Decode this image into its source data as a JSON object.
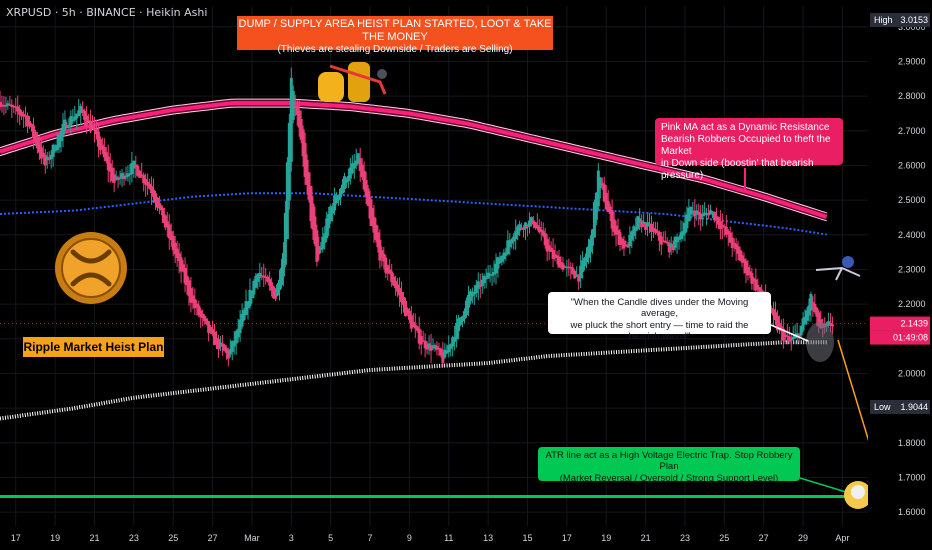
{
  "header": {
    "symbol_line": "XRPUSD · 5h · BINANCE · Heikin Ashi"
  },
  "annotations": {
    "top_line1": "DUMP / SUPPLY AREA HEIST PLAN STARTED, LOOT & TAKE THE MONEY",
    "top_line2": "(Thieves are stealing Downside / Traders are Selling)",
    "pink_line1": "Pink MA act as a Dynamic Resistance",
    "pink_line2": "Bearish Robbers Occupied to theft the Market",
    "pink_line3": "in Down side (boostin' that bearish pressure)",
    "white_line1": "\"When the Candle dives under the Moving average,",
    "white_line2": "we pluck the short entry — time to raid the bearish wave!\"",
    "green_line1": "ATR line act as a High Voltage Electric Trap. Stop Robbery Plan",
    "green_line2": "(Market Reversal / Oversold / Strong Support Level)",
    "heist_label": "Ripple Market Heist Plan"
  },
  "price_tags": {
    "high_label": "High",
    "high_value": "3.0153",
    "current_value": "2.1439",
    "countdown": "01:49:08",
    "low_label": "Low",
    "low_value": "1.9044"
  },
  "colors": {
    "bull": "#26a69a",
    "bear": "#ec407a",
    "pink_ma": "#ff1f7a",
    "blue_ma": "#2962ff",
    "white_ma": "#ffffff",
    "atr_line": "#00c853",
    "arrow": "#f7a21b"
  },
  "chart_data": {
    "type": "candlestick",
    "title": "XRPUSD · 5h · BINANCE · Heikin Ashi",
    "y_ticks": [
      1.6,
      1.7,
      1.8,
      1.9,
      2.0,
      2.1,
      2.2,
      2.3,
      2.4,
      2.5,
      2.6,
      2.7,
      2.8,
      2.9,
      3.0
    ],
    "ylim": [
      1.56,
      3.06
    ],
    "x_ticks": [
      "17",
      "19",
      "21",
      "23",
      "25",
      "27",
      "Mar",
      "3",
      "5",
      "7",
      "9",
      "11",
      "13",
      "15",
      "17",
      "19",
      "21",
      "23",
      "25",
      "27",
      "29",
      "Apr"
    ],
    "x_tick_index": [
      0,
      2,
      4,
      6,
      8,
      10,
      12,
      14,
      16,
      18,
      20,
      22,
      24,
      26,
      28,
      30,
      32,
      34,
      36,
      38,
      40,
      42
    ],
    "x_range": [
      -0.8,
      43.3
    ],
    "price_path": {
      "x": [
        -1.0,
        0.5,
        1.5,
        2.5,
        3.3,
        4.0,
        5.0,
        6.0,
        7.0,
        8.0,
        9.0,
        10.0,
        10.8,
        11.5,
        12.3,
        13.2,
        13.6,
        14.0,
        14.6,
        15.3,
        16.0,
        16.8,
        17.4,
        18.0,
        18.6,
        19.3,
        20.0,
        20.6,
        21.3,
        21.7,
        22.3,
        23.0,
        23.8,
        24.6,
        25.4,
        26.3,
        27.2,
        28.0,
        28.6,
        29.2,
        29.6,
        30.0,
        30.5,
        31.0,
        31.6,
        32.2,
        32.8,
        33.3,
        33.8,
        34.3,
        34.8,
        35.3,
        35.8,
        36.3,
        36.8,
        37.3,
        37.8,
        38.3,
        38.8,
        39.3,
        39.7,
        40.1,
        40.4,
        40.7,
        41.0,
        41.3,
        41.6
      ],
      "y": [
        2.79,
        2.74,
        2.6,
        2.72,
        2.76,
        2.69,
        2.55,
        2.6,
        2.52,
        2.36,
        2.2,
        2.1,
        2.05,
        2.16,
        2.3,
        2.22,
        2.35,
        2.86,
        2.62,
        2.32,
        2.48,
        2.57,
        2.62,
        2.44,
        2.32,
        2.25,
        2.15,
        2.09,
        2.07,
        2.04,
        2.12,
        2.22,
        2.27,
        2.33,
        2.42,
        2.44,
        2.34,
        2.3,
        2.28,
        2.38,
        2.58,
        2.48,
        2.4,
        2.36,
        2.44,
        2.42,
        2.38,
        2.36,
        2.41,
        2.48,
        2.45,
        2.47,
        2.43,
        2.38,
        2.33,
        2.28,
        2.23,
        2.18,
        2.12,
        2.09,
        2.11,
        2.16,
        2.22,
        2.15,
        2.12,
        2.14,
        2.1439
      ]
    },
    "pink_ma": {
      "x": [
        -0.8,
        2.0,
        5.0,
        8.0,
        11.0,
        14.0,
        17.0,
        20.0,
        23.0,
        26.0,
        29.0,
        32.0,
        35.0,
        38.0,
        41.3
      ],
      "y": [
        2.64,
        2.69,
        2.73,
        2.76,
        2.78,
        2.78,
        2.77,
        2.75,
        2.72,
        2.68,
        2.64,
        2.6,
        2.56,
        2.51,
        2.45
      ]
    },
    "blue_ma": {
      "x": [
        -0.8,
        3.0,
        6.0,
        9.0,
        12.0,
        15.0,
        18.0,
        21.0,
        24.0,
        27.0,
        30.0,
        33.0,
        36.0,
        39.0,
        41.3
      ],
      "y": [
        2.46,
        2.47,
        2.49,
        2.51,
        2.52,
        2.52,
        2.51,
        2.5,
        2.49,
        2.48,
        2.47,
        2.46,
        2.44,
        2.42,
        2.4
      ]
    },
    "white_ma": {
      "x": [
        -0.8,
        3.0,
        6.0,
        9.0,
        12.0,
        15.0,
        18.0,
        21.0,
        24.0,
        27.0,
        30.0,
        33.0,
        36.0,
        39.0,
        41.3
      ],
      "y": [
        1.87,
        1.9,
        1.93,
        1.95,
        1.97,
        1.99,
        2.01,
        2.02,
        2.03,
        2.05,
        2.06,
        2.07,
        2.08,
        2.09,
        2.09
      ]
    },
    "atr_level": 1.645,
    "high": 3.0153,
    "low": 1.9044,
    "last": 2.1439
  }
}
